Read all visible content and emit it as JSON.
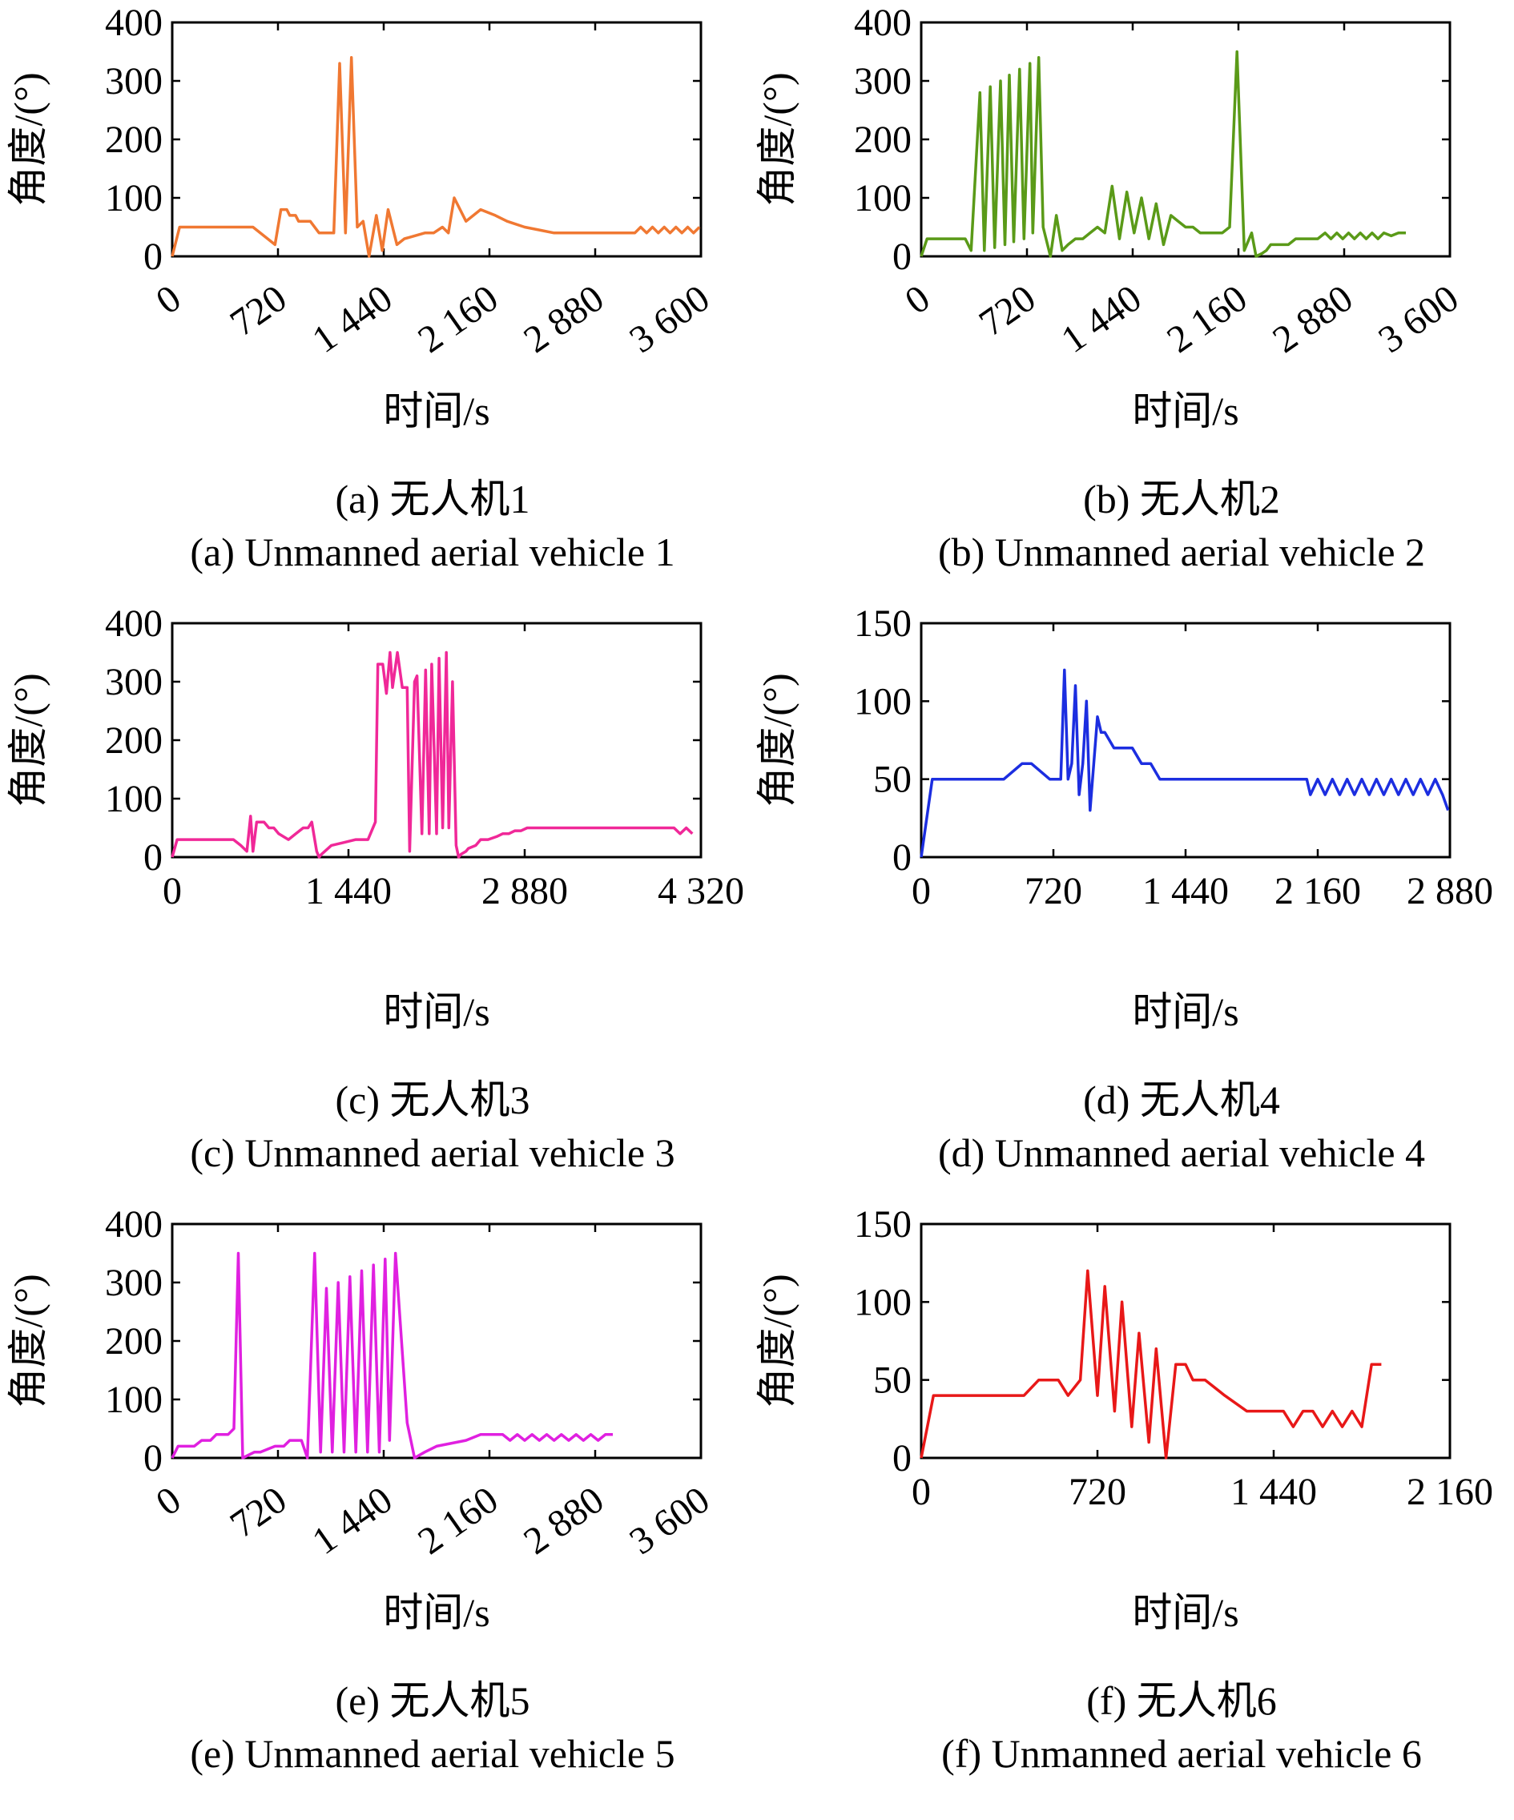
{
  "chart_data": [
    {
      "type": "line",
      "caption_cn": "(a) 无人机1",
      "caption_en": "(a) Unmanned aerial vehicle 1",
      "xlabel": "时间/s",
      "ylabel": "角度/(°)",
      "xlim": [
        0,
        3600
      ],
      "ylim": [
        0,
        400
      ],
      "xticks": [
        0,
        720,
        1440,
        2160,
        2880,
        3600
      ],
      "xtick_labels": [
        "0",
        "720",
        "1 440",
        "2 160",
        "2 880",
        "3 600"
      ],
      "yticks": [
        0,
        100,
        200,
        300,
        400
      ],
      "ytick_labels": [
        "0",
        "100",
        "200",
        "300",
        "400"
      ],
      "xtick_rotation": -35,
      "color": "#f07832",
      "series": [
        {
          "x": [
            0,
            50,
            100,
            500,
            550,
            650,
            700,
            740,
            780,
            800,
            840,
            860,
            940,
            1000,
            1050,
            1100,
            1140,
            1180,
            1220,
            1260,
            1300,
            1340,
            1390,
            1430,
            1470,
            1530,
            1580,
            1720,
            1780,
            1840,
            1880,
            1920,
            2000,
            2100,
            2200,
            2280,
            2400,
            2500,
            2600,
            2700,
            2800,
            3000,
            3150,
            3190,
            3230,
            3270,
            3310,
            3350,
            3390,
            3430,
            3470,
            3510,
            3550,
            3590
          ],
          "y": [
            0,
            50,
            50,
            50,
            50,
            30,
            20,
            80,
            80,
            70,
            70,
            60,
            60,
            40,
            40,
            40,
            330,
            40,
            340,
            50,
            60,
            0,
            70,
            10,
            80,
            20,
            30,
            40,
            40,
            50,
            40,
            100,
            60,
            80,
            70,
            60,
            50,
            45,
            40,
            40,
            40,
            40,
            40,
            50,
            40,
            50,
            40,
            50,
            40,
            50,
            40,
            50,
            40,
            50
          ]
        }
      ]
    },
    {
      "type": "line",
      "caption_cn": "(b) 无人机2",
      "caption_en": "(b) Unmanned aerial vehicle 2",
      "xlabel": "时间/s",
      "ylabel": "角度/(°)",
      "xlim": [
        0,
        3600
      ],
      "ylim": [
        0,
        400
      ],
      "xticks": [
        0,
        720,
        1440,
        2160,
        2880,
        3600
      ],
      "xtick_labels": [
        "0",
        "720",
        "1 440",
        "2 160",
        "2 880",
        "3 600"
      ],
      "yticks": [
        0,
        100,
        200,
        300,
        400
      ],
      "ytick_labels": [
        "0",
        "100",
        "200",
        "300",
        "400"
      ],
      "xtick_rotation": -35,
      "color": "#5a9a18",
      "series": [
        {
          "x": [
            0,
            40,
            300,
            340,
            400,
            430,
            470,
            500,
            540,
            570,
            600,
            630,
            670,
            700,
            740,
            760,
            800,
            830,
            880,
            920,
            960,
            1000,
            1050,
            1100,
            1150,
            1200,
            1250,
            1300,
            1350,
            1400,
            1450,
            1500,
            1550,
            1600,
            1650,
            1700,
            1750,
            1800,
            1850,
            1900,
            1950,
            2000,
            2050,
            2100,
            2150,
            2200,
            2250,
            2280,
            2320,
            2350,
            2380,
            2400,
            2500,
            2550,
            2600,
            2650,
            2700,
            2750,
            2790,
            2830,
            2870,
            2910,
            2950,
            2990,
            3030,
            3070,
            3110,
            3150,
            3200,
            3250,
            3300
          ],
          "y": [
            0,
            30,
            30,
            10,
            280,
            10,
            290,
            15,
            300,
            20,
            310,
            25,
            320,
            30,
            330,
            40,
            340,
            50,
            0,
            70,
            10,
            20,
            30,
            30,
            40,
            50,
            40,
            120,
            30,
            110,
            40,
            100,
            30,
            90,
            20,
            70,
            60,
            50,
            50,
            40,
            40,
            40,
            40,
            50,
            350,
            10,
            40,
            0,
            5,
            10,
            20,
            20,
            20,
            30,
            30,
            30,
            30,
            40,
            30,
            40,
            30,
            40,
            30,
            40,
            30,
            40,
            30,
            40,
            35,
            40,
            40
          ]
        }
      ]
    },
    {
      "type": "line",
      "caption_cn": "(c) 无人机3",
      "caption_en": "(c) Unmanned aerial vehicle 3",
      "xlabel": "时间/s",
      "ylabel": "角度/(°)",
      "xlim": [
        0,
        4320
      ],
      "ylim": [
        0,
        400
      ],
      "xticks": [
        0,
        1440,
        2880,
        4320
      ],
      "xtick_labels": [
        "0",
        "1 440",
        "2 880",
        "4 320"
      ],
      "yticks": [
        0,
        100,
        200,
        300,
        400
      ],
      "ytick_labels": [
        "0",
        "100",
        "200",
        "300",
        "400"
      ],
      "xtick_rotation": 0,
      "color": "#f02898",
      "series": [
        {
          "x": [
            0,
            40,
            500,
            560,
            610,
            640,
            660,
            690,
            750,
            790,
            830,
            870,
            950,
            1010,
            1070,
            1110,
            1140,
            1180,
            1200,
            1220,
            1300,
            1400,
            1500,
            1600,
            1660,
            1680,
            1720,
            1750,
            1780,
            1800,
            1840,
            1880,
            1920,
            1940,
            1980,
            2000,
            2040,
            2070,
            2100,
            2120,
            2160,
            2180,
            2210,
            2240,
            2260,
            2290,
            2320,
            2340,
            2360,
            2400,
            2420,
            2480,
            2520,
            2580,
            2650,
            2700,
            2750,
            2800,
            2850,
            2900,
            3000,
            3200,
            4100,
            4150,
            4200,
            4250
          ],
          "y": [
            0,
            30,
            30,
            20,
            10,
            70,
            10,
            60,
            60,
            50,
            50,
            40,
            30,
            40,
            50,
            50,
            60,
            10,
            0,
            5,
            20,
            25,
            30,
            30,
            60,
            330,
            330,
            280,
            350,
            290,
            350,
            290,
            290,
            10,
            300,
            310,
            40,
            320,
            40,
            330,
            40,
            340,
            50,
            350,
            50,
            300,
            20,
            0,
            5,
            10,
            15,
            20,
            30,
            30,
            35,
            40,
            40,
            45,
            45,
            50,
            50,
            50,
            50,
            40,
            50,
            40
          ]
        }
      ]
    },
    {
      "type": "line",
      "caption_cn": "(d) 无人机4",
      "caption_en": "(d) Unmanned aerial vehicle 4",
      "xlabel": "时间/s",
      "ylabel": "角度/(°)",
      "xlim": [
        0,
        2880
      ],
      "ylim": [
        0,
        150
      ],
      "xticks": [
        0,
        720,
        1440,
        2160,
        2880
      ],
      "xtick_labels": [
        "0",
        "720",
        "1 440",
        "2 160",
        "2 880"
      ],
      "yticks": [
        0,
        50,
        100,
        150
      ],
      "ytick_labels": [
        "0",
        "50",
        "100",
        "150"
      ],
      "xtick_rotation": 0,
      "color": "#1c2ee0",
      "series": [
        {
          "x": [
            0,
            60,
            400,
            450,
            550,
            600,
            700,
            760,
            780,
            800,
            820,
            840,
            860,
            880,
            900,
            920,
            940,
            960,
            980,
            1000,
            1050,
            1100,
            1150,
            1200,
            1250,
            1300,
            1350,
            1400,
            1700,
            2100,
            2120,
            2160,
            2200,
            2240,
            2280,
            2320,
            2360,
            2400,
            2440,
            2480,
            2520,
            2560,
            2600,
            2640,
            2680,
            2720,
            2760,
            2800,
            2840,
            2870
          ],
          "y": [
            0,
            50,
            50,
            50,
            60,
            60,
            50,
            50,
            120,
            50,
            60,
            110,
            40,
            60,
            100,
            30,
            60,
            90,
            80,
            80,
            70,
            70,
            70,
            60,
            60,
            50,
            50,
            50,
            50,
            50,
            40,
            50,
            40,
            50,
            40,
            50,
            40,
            50,
            40,
            50,
            40,
            50,
            40,
            50,
            40,
            50,
            40,
            50,
            40,
            30
          ]
        }
      ]
    },
    {
      "type": "line",
      "caption_cn": "(e) 无人机5",
      "caption_en": "(e) Unmanned aerial vehicle 5",
      "xlabel": "时间/s",
      "ylabel": "角度/(°)",
      "xlim": [
        0,
        3600
      ],
      "ylim": [
        0,
        400
      ],
      "xticks": [
        0,
        720,
        1440,
        2160,
        2880,
        3600
      ],
      "xtick_labels": [
        "0",
        "720",
        "1 440",
        "2 160",
        "2 880",
        "3 600"
      ],
      "yticks": [
        0,
        100,
        200,
        300,
        400
      ],
      "ytick_labels": [
        "0",
        "100",
        "200",
        "300",
        "400"
      ],
      "xtick_rotation": -35,
      "color": "#e020e0",
      "series": [
        {
          "x": [
            0,
            40,
            150,
            200,
            260,
            300,
            380,
            420,
            450,
            480,
            560,
            600,
            700,
            760,
            800,
            880,
            920,
            970,
            1010,
            1050,
            1090,
            1130,
            1170,
            1210,
            1250,
            1290,
            1330,
            1370,
            1410,
            1450,
            1480,
            1520,
            1600,
            1650,
            1720,
            1800,
            2000,
            2100,
            2150,
            2200,
            2250,
            2300,
            2350,
            2400,
            2450,
            2500,
            2550,
            2600,
            2650,
            2700,
            2750,
            2800,
            2850,
            2900,
            2950,
            3000
          ],
          "y": [
            0,
            20,
            20,
            30,
            30,
            40,
            40,
            50,
            350,
            0,
            10,
            10,
            20,
            20,
            30,
            30,
            0,
            350,
            10,
            290,
            10,
            300,
            10,
            310,
            10,
            320,
            10,
            330,
            10,
            340,
            30,
            350,
            60,
            0,
            10,
            20,
            30,
            40,
            40,
            40,
            40,
            30,
            40,
            30,
            40,
            30,
            40,
            30,
            40,
            30,
            40,
            30,
            40,
            30,
            40,
            40
          ]
        }
      ]
    },
    {
      "type": "line",
      "caption_cn": "(f) 无人机6",
      "caption_en": "(f) Unmanned aerial vehicle 6",
      "xlabel": "时间/s",
      "ylabel": "角度/(°)",
      "xlim": [
        0,
        2160
      ],
      "ylim": [
        0,
        150
      ],
      "xticks": [
        0,
        720,
        1440,
        2160
      ],
      "xtick_labels": [
        "0",
        "720",
        "1 440",
        "2 160"
      ],
      "yticks": [
        0,
        50,
        100,
        150
      ],
      "ytick_labels": [
        "0",
        "50",
        "100",
        "150"
      ],
      "xtick_rotation": 0,
      "color": "#e81818",
      "series": [
        {
          "x": [
            0,
            50,
            420,
            480,
            560,
            600,
            650,
            680,
            720,
            750,
            790,
            820,
            860,
            890,
            930,
            960,
            1000,
            1040,
            1080,
            1110,
            1160,
            1240,
            1330,
            1480,
            1520,
            1560,
            1600,
            1640,
            1680,
            1720,
            1760,
            1800,
            1840,
            1880
          ],
          "y": [
            0,
            40,
            40,
            50,
            50,
            40,
            50,
            120,
            40,
            110,
            30,
            100,
            20,
            80,
            10,
            70,
            0,
            60,
            60,
            50,
            50,
            40,
            30,
            30,
            20,
            30,
            30,
            20,
            30,
            20,
            30,
            20,
            60,
            60
          ]
        }
      ]
    }
  ]
}
